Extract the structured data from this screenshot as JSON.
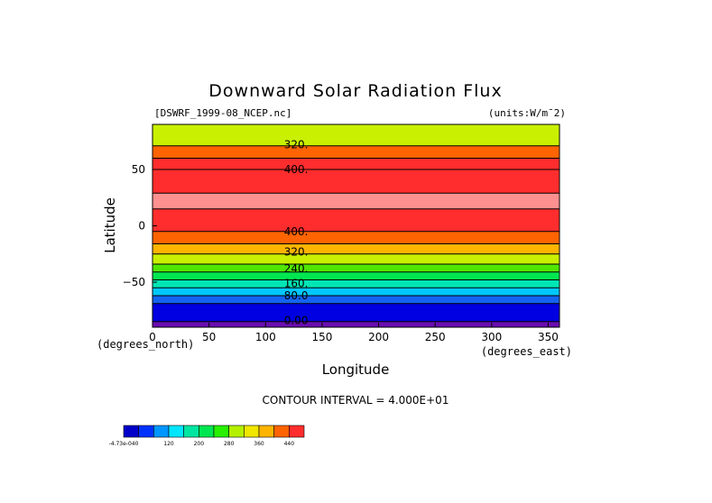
{
  "chart_data": {
    "type": "heatmap",
    "title": "Downward Solar Radiation Flux",
    "file_label": "[DSWRF_1999-08_NCEP.nc]",
    "units_label": "(units:W/m¯2)",
    "xlabel": "Longitude",
    "ylabel": "Latitude",
    "x_unit_label": "(degrees_east)",
    "y_unit_label": "(degrees_north)",
    "xlim": [
      0,
      360
    ],
    "ylim": [
      -90,
      90
    ],
    "xticks": [
      0,
      50,
      100,
      150,
      200,
      250,
      300,
      350
    ],
    "yticks": [
      50,
      0,
      -50
    ],
    "ytick_labels": [
      "50",
      "0",
      "−50"
    ],
    "contour_interval_text": "CONTOUR INTERVAL = 4.000E+01",
    "levels": [
      0,
      40,
      80,
      120,
      160,
      200,
      240,
      280,
      320,
      360,
      400,
      440
    ],
    "colors": [
      "#6a0db0",
      "#0000e0",
      "#1464f0",
      "#00c8ff",
      "#00e6b4",
      "#00e650",
      "#50e600",
      "#c8f000",
      "#ffb400",
      "#ff6400",
      "#ff2d2d",
      "#ff9090"
    ],
    "bands": [
      {
        "lat_from": -90,
        "lat_to": -85,
        "level": "0-40"
      },
      {
        "lat_from": -85,
        "lat_to": -69,
        "level": "40-80"
      },
      {
        "lat_from": -69,
        "lat_to": -62,
        "level": "80-120"
      },
      {
        "lat_from": -62,
        "lat_to": -55,
        "level": "120-160"
      },
      {
        "lat_from": -55,
        "lat_to": -48,
        "level": "160-200"
      },
      {
        "lat_from": -48,
        "lat_to": -41,
        "level": "200-240"
      },
      {
        "lat_from": -41,
        "lat_to": -34,
        "level": "240-280"
      },
      {
        "lat_from": -34,
        "lat_to": -25,
        "level": "280-320"
      },
      {
        "lat_from": -25,
        "lat_to": -16,
        "level": "320-360"
      },
      {
        "lat_from": -16,
        "lat_to": -5,
        "level": "360-400"
      },
      {
        "lat_from": -5,
        "lat_to": 15,
        "level": "400-440"
      },
      {
        "lat_from": 15,
        "lat_to": 29,
        "level": ">440"
      },
      {
        "lat_from": 29,
        "lat_to": 50,
        "level": "400-440"
      },
      {
        "lat_from": 50,
        "lat_to": 60,
        "level": "400-440"
      },
      {
        "lat_from": 60,
        "lat_to": 71,
        "level": "360-400"
      },
      {
        "lat_from": 71,
        "lat_to": 90,
        "level": "280-360"
      }
    ],
    "contour_labels": [
      {
        "text": "320.",
        "lon": 127,
        "lat": 72
      },
      {
        "text": "400.",
        "lon": 127,
        "lat": 50
      },
      {
        "text": "400.",
        "lon": 127,
        "lat": -5
      },
      {
        "text": "320.",
        "lon": 127,
        "lat": -23
      },
      {
        "text": "240.",
        "lon": 127,
        "lat": -38
      },
      {
        "text": "160.",
        "lon": 127,
        "lat": -51
      },
      {
        "text": "80.0",
        "lon": 127,
        "lat": -62
      },
      {
        "text": "0.00",
        "lon": 127,
        "lat": -84
      }
    ],
    "colorbar": {
      "colors": [
        "#0000c8",
        "#0032ff",
        "#0096ff",
        "#00e6ff",
        "#00e6a0",
        "#00e650",
        "#28f000",
        "#b4f000",
        "#f0e600",
        "#ffb400",
        "#ff6400",
        "#ff2d2d"
      ],
      "tick_labels": [
        "-4.73e-040",
        "120",
        "200",
        "280",
        "360",
        "440"
      ]
    }
  }
}
